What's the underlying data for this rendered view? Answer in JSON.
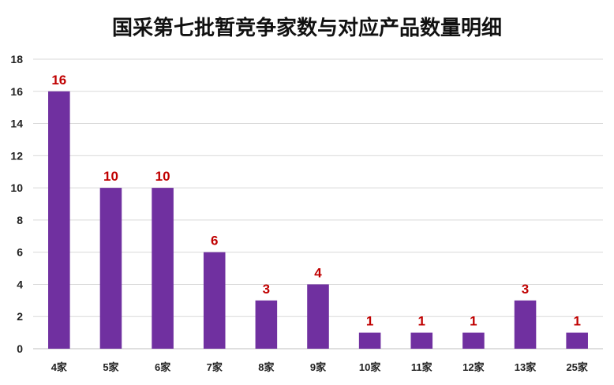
{
  "chart_data": {
    "type": "bar",
    "title": "国采第七批暂竞争家数与对应产品数量明细",
    "xlabel": "",
    "ylabel": "",
    "ylim": [
      0,
      18
    ],
    "yticks": [
      0,
      2,
      4,
      6,
      8,
      10,
      12,
      14,
      16,
      18
    ],
    "grid": true,
    "categories": [
      "4家",
      "5家",
      "6家",
      "7家",
      "8家",
      "9家",
      "10家",
      "11家",
      "12家",
      "13家",
      "25家"
    ],
    "values": [
      16,
      10,
      10,
      6,
      3,
      4,
      1,
      1,
      1,
      3,
      1
    ],
    "bar_color": "#7030a0",
    "label_color": "#c00000",
    "grid_color": "#d9d9d9"
  }
}
